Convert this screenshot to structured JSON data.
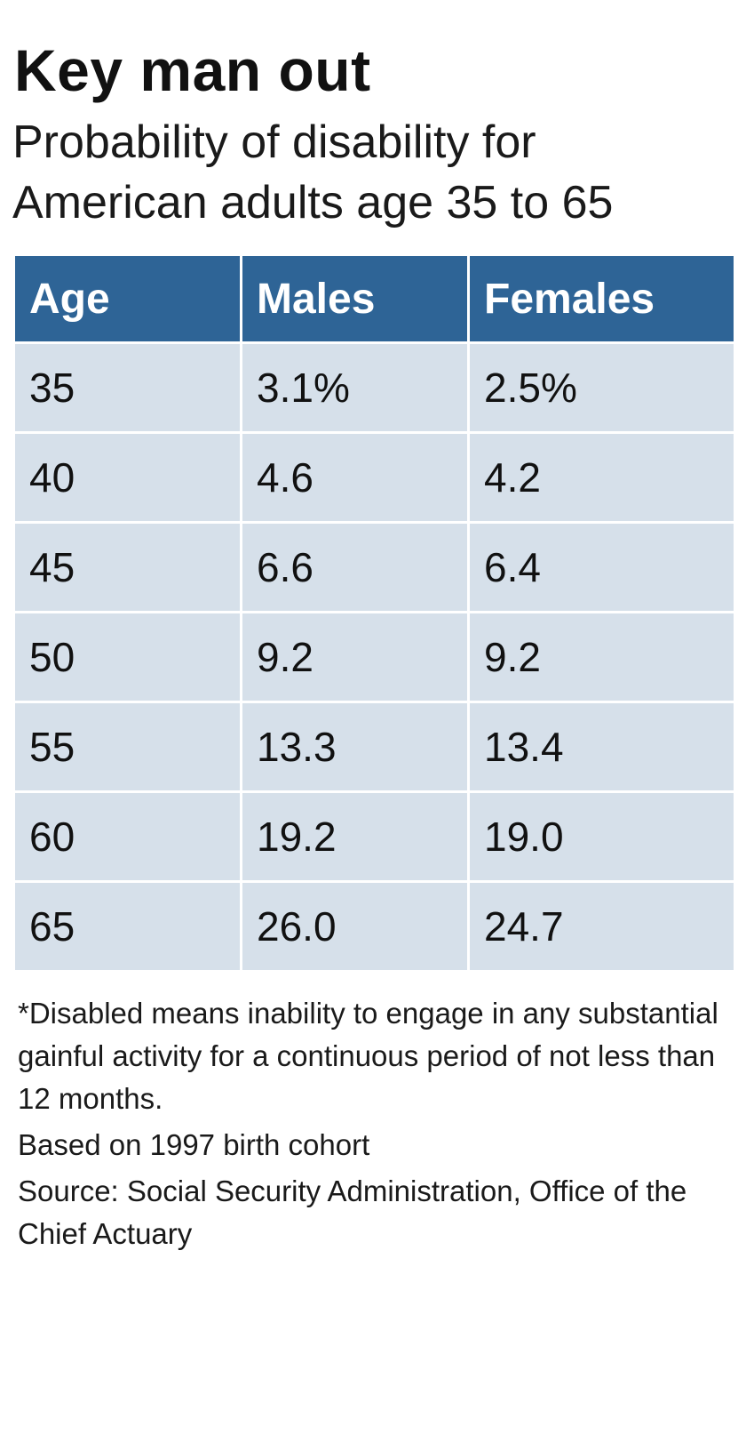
{
  "chart_data": {
    "type": "table",
    "title": "Key man out",
    "subtitle": "Probability of disability for American adults age 35 to 65",
    "columns": [
      "Age",
      "Males",
      "Females"
    ],
    "rows": [
      [
        "35",
        "3.1%",
        "2.5%"
      ],
      [
        "40",
        "4.6",
        "4.2"
      ],
      [
        "45",
        "6.6",
        "6.4"
      ],
      [
        "50",
        "9.2",
        "9.2"
      ],
      [
        "55",
        "13.3",
        "13.4"
      ],
      [
        "60",
        "19.2",
        "19.0"
      ],
      [
        "65",
        "26.0",
        "24.7"
      ]
    ],
    "series": [
      {
        "name": "Males",
        "values": [
          3.1,
          4.6,
          6.6,
          9.2,
          13.3,
          19.2,
          26.0
        ]
      },
      {
        "name": "Females",
        "values": [
          2.5,
          4.2,
          6.4,
          9.2,
          13.4,
          19.0,
          24.7
        ]
      }
    ],
    "categories": [
      "35",
      "40",
      "45",
      "50",
      "55",
      "60",
      "65"
    ],
    "notes": [
      "*Disabled means inability to engage in any substantial gainful activity for a continuous period of not less than 12 months.",
      "Based on 1997 birth cohort",
      "Source: Social Security Administration, Office of the Chief Actuary"
    ]
  },
  "colors": {
    "header_bg": "#2e6496",
    "cell_bg": "#d6e0ea",
    "text": "#111111"
  }
}
